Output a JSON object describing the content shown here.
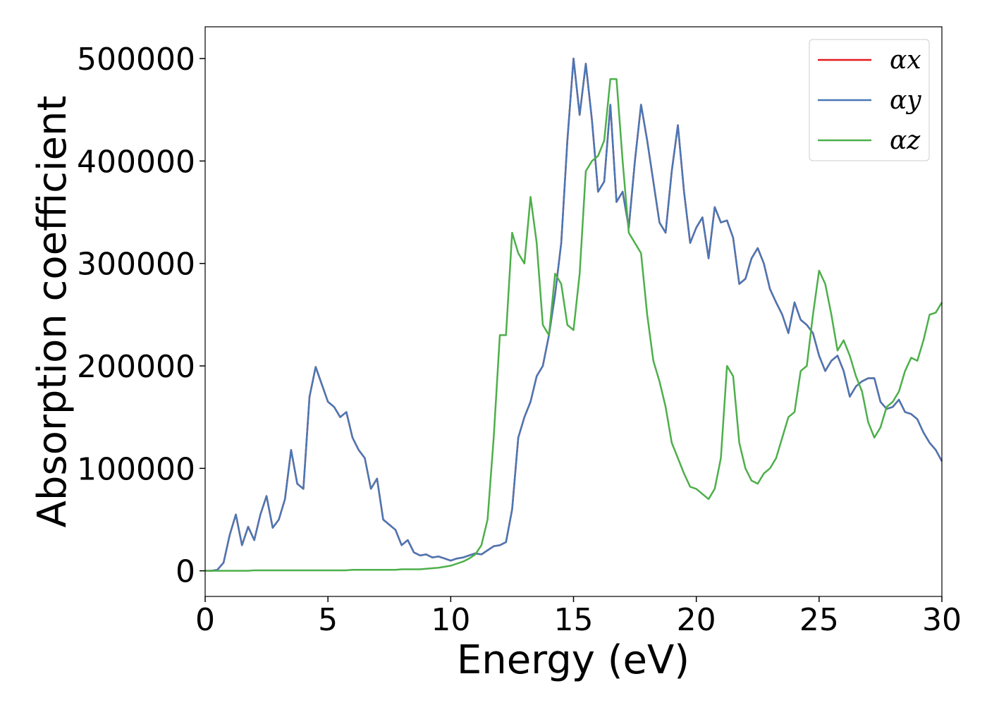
{
  "chart_data": {
    "type": "line",
    "x_label": "Energy (eV)",
    "y_label": "Absorption coefficient",
    "x": [
      0,
      0.25,
      0.5,
      0.75,
      1,
      1.25,
      1.5,
      1.75,
      2,
      2.25,
      2.5,
      2.75,
      3,
      3.25,
      3.5,
      3.75,
      4,
      4.25,
      4.5,
      4.75,
      5,
      5.25,
      5.5,
      5.75,
      6,
      6.25,
      6.5,
      6.75,
      7,
      7.25,
      7.5,
      7.75,
      8,
      8.25,
      8.5,
      8.75,
      9,
      9.25,
      9.5,
      9.75,
      10,
      10.25,
      10.5,
      10.75,
      11,
      11.25,
      11.5,
      11.75,
      12,
      12.25,
      12.5,
      12.75,
      13,
      13.25,
      13.5,
      13.75,
      14,
      14.25,
      14.5,
      14.75,
      15,
      15.25,
      15.5,
      15.75,
      16,
      16.25,
      16.5,
      16.75,
      17,
      17.25,
      17.5,
      17.75,
      18,
      18.25,
      18.5,
      18.75,
      19,
      19.25,
      19.5,
      19.75,
      20,
      20.25,
      20.5,
      20.75,
      21,
      21.25,
      21.5,
      21.75,
      22,
      22.25,
      22.5,
      22.75,
      23,
      23.25,
      23.5,
      23.75,
      24,
      24.25,
      24.5,
      24.75,
      25,
      25.25,
      25.5,
      25.75,
      26,
      26.25,
      26.5,
      26.75,
      27,
      27.25,
      27.5,
      27.75,
      28,
      28.25,
      28.5,
      28.75,
      29,
      29.25,
      29.5,
      29.75,
      30
    ],
    "series": [
      {
        "name": "αx",
        "color": "#e41a1c",
        "values": [
          0,
          0,
          1000,
          8000,
          35000,
          55000,
          25000,
          43000,
          30000,
          55000,
          73000,
          42000,
          50000,
          70000,
          118000,
          85000,
          80000,
          170000,
          199000,
          182000,
          165000,
          160000,
          150000,
          155000,
          130000,
          118000,
          110000,
          80000,
          90000,
          50000,
          45000,
          40000,
          25000,
          30000,
          18000,
          15000,
          16000,
          13000,
          14000,
          12000,
          10000,
          12000,
          13000,
          15000,
          17000,
          16000,
          20000,
          24000,
          25000,
          28000,
          60000,
          130000,
          150000,
          165000,
          190000,
          200000,
          230000,
          270000,
          320000,
          420000,
          500000,
          445000,
          495000,
          440000,
          370000,
          380000,
          455000,
          360000,
          370000,
          335000,
          400000,
          455000,
          420000,
          380000,
          340000,
          330000,
          390000,
          435000,
          370000,
          320000,
          335000,
          345000,
          305000,
          355000,
          340000,
          342000,
          325000,
          280000,
          285000,
          305000,
          315000,
          300000,
          275000,
          262000,
          250000,
          232000,
          262000,
          245000,
          240000,
          232000,
          210000,
          195000,
          205000,
          210000,
          195000,
          170000,
          180000,
          185000,
          188000,
          188000,
          165000,
          158000,
          160000,
          167000,
          155000,
          153000,
          148000,
          135000,
          125000,
          118000,
          107000
        ]
      },
      {
        "name": "αy",
        "color": "#4a77b4",
        "values": [
          0,
          0,
          1000,
          8000,
          35000,
          55000,
          25000,
          43000,
          30000,
          55000,
          73000,
          42000,
          50000,
          70000,
          118000,
          85000,
          80000,
          170000,
          199000,
          182000,
          165000,
          160000,
          150000,
          155000,
          130000,
          118000,
          110000,
          80000,
          90000,
          50000,
          45000,
          40000,
          25000,
          30000,
          18000,
          15000,
          16000,
          13000,
          14000,
          12000,
          10000,
          12000,
          13000,
          15000,
          17000,
          16000,
          20000,
          24000,
          25000,
          28000,
          60000,
          130000,
          150000,
          165000,
          190000,
          200000,
          230000,
          270000,
          320000,
          420000,
          500000,
          445000,
          495000,
          440000,
          370000,
          380000,
          455000,
          360000,
          370000,
          335000,
          400000,
          455000,
          420000,
          380000,
          340000,
          330000,
          390000,
          435000,
          370000,
          320000,
          335000,
          345000,
          305000,
          355000,
          340000,
          342000,
          325000,
          280000,
          285000,
          305000,
          315000,
          300000,
          275000,
          262000,
          250000,
          232000,
          262000,
          245000,
          240000,
          232000,
          210000,
          195000,
          205000,
          210000,
          195000,
          170000,
          180000,
          185000,
          188000,
          188000,
          165000,
          158000,
          160000,
          167000,
          155000,
          153000,
          148000,
          135000,
          125000,
          118000,
          107000
        ]
      },
      {
        "name": "αz",
        "color": "#4daf4a",
        "values": [
          0,
          0,
          0,
          0,
          0,
          0,
          0,
          0,
          500,
          500,
          500,
          500,
          500,
          500,
          500,
          500,
          500,
          500,
          500,
          500,
          500,
          500,
          500,
          500,
          1000,
          1000,
          1000,
          1000,
          1000,
          1000,
          1000,
          1000,
          1500,
          1500,
          1500,
          1500,
          2000,
          2500,
          3000,
          4000,
          5000,
          7000,
          9000,
          12000,
          16000,
          25000,
          50000,
          130000,
          230000,
          230000,
          330000,
          310000,
          300000,
          365000,
          320000,
          240000,
          230000,
          290000,
          280000,
          240000,
          235000,
          290000,
          390000,
          400000,
          405000,
          420000,
          480000,
          480000,
          400000,
          330000,
          320000,
          310000,
          250000,
          205000,
          185000,
          160000,
          125000,
          110000,
          95000,
          82000,
          80000,
          75000,
          70000,
          80000,
          110000,
          200000,
          190000,
          125000,
          100000,
          88000,
          85000,
          95000,
          100000,
          110000,
          130000,
          150000,
          155000,
          195000,
          200000,
          250000,
          293000,
          280000,
          250000,
          215000,
          225000,
          210000,
          190000,
          175000,
          145000,
          130000,
          140000,
          160000,
          165000,
          175000,
          195000,
          208000,
          205000,
          225000,
          250000,
          252000,
          262000
        ]
      }
    ],
    "xlim": [
      0,
      30
    ],
    "ylim": [
      -25000,
      531000
    ],
    "xticks": [
      0,
      5,
      10,
      15,
      20,
      25,
      30
    ],
    "yticks": [
      0,
      100000,
      200000,
      300000,
      400000,
      500000
    ],
    "legend": "upper right"
  }
}
